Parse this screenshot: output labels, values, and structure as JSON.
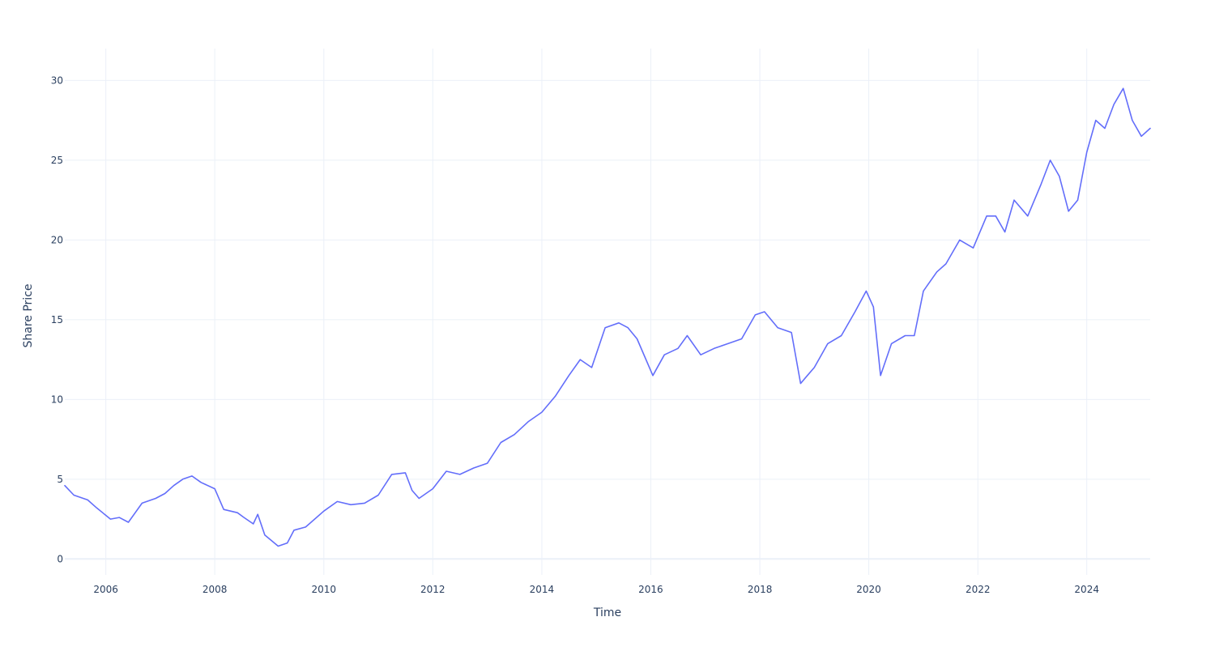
{
  "chart_data": {
    "type": "line",
    "title": "",
    "xlabel": "Time",
    "ylabel": "Share Price",
    "xlim": [
      "2005-04-01",
      "2025-03-01"
    ],
    "ylim": [
      -1,
      32
    ],
    "x_ticks": [
      "2006",
      "2008",
      "2010",
      "2012",
      "2014",
      "2016",
      "2018",
      "2020",
      "2022",
      "2024"
    ],
    "y_ticks": [
      0,
      5,
      10,
      15,
      20,
      25,
      30
    ],
    "grid": true,
    "legend": "none",
    "series": [
      {
        "color": "#636efa",
        "x": [
          "2005-04-01",
          "2005-06-01",
          "2005-09-01",
          "2005-11-01",
          "2006-02-01",
          "2006-04-01",
          "2006-06-01",
          "2006-09-01",
          "2006-12-01",
          "2007-02-01",
          "2007-04-01",
          "2007-06-01",
          "2007-08-01",
          "2007-10-01",
          "2008-01-01",
          "2008-03-01",
          "2008-06-01",
          "2008-07-15",
          "2008-09-15",
          "2008-10-15",
          "2008-12-01",
          "2009-03-01",
          "2009-05-01",
          "2009-06-15",
          "2009-09-01",
          "2010-01-01",
          "2010-04-01",
          "2010-07-01",
          "2010-10-01",
          "2011-01-01",
          "2011-04-01",
          "2011-07-01",
          "2011-08-15",
          "2011-10-01",
          "2012-01-01",
          "2012-04-01",
          "2012-07-01",
          "2012-10-01",
          "2013-01-01",
          "2013-04-01",
          "2013-07-01",
          "2013-10-01",
          "2014-01-01",
          "2014-04-01",
          "2014-07-01",
          "2014-09-15",
          "2014-12-01",
          "2015-03-01",
          "2015-06-01",
          "2015-08-01",
          "2015-10-01",
          "2016-01-15",
          "2016-04-01",
          "2016-07-01",
          "2016-09-01",
          "2016-12-01",
          "2017-03-01",
          "2017-06-01",
          "2017-09-01",
          "2017-12-01",
          "2018-02-01",
          "2018-05-01",
          "2018-08-01",
          "2018-10-01",
          "2018-11-15",
          "2019-01-01",
          "2019-04-01",
          "2019-07-01",
          "2019-10-01",
          "2019-12-15",
          "2020-02-01",
          "2020-03-20",
          "2020-06-01",
          "2020-09-01",
          "2020-11-01",
          "2021-01-01",
          "2021-04-01",
          "2021-06-01",
          "2021-09-01",
          "2021-12-01",
          "2022-03-01",
          "2022-05-01",
          "2022-07-01",
          "2022-09-01",
          "2022-12-01",
          "2023-03-01",
          "2023-05-01",
          "2023-07-01",
          "2023-09-01",
          "2023-11-01",
          "2024-01-01",
          "2024-03-01",
          "2024-05-01",
          "2024-07-01",
          "2024-09-01",
          "2024-11-01",
          "2025-01-01",
          "2025-03-01"
        ],
        "y": [
          4.6,
          4.0,
          3.7,
          3.2,
          2.5,
          2.6,
          2.3,
          3.5,
          3.8,
          4.1,
          4.6,
          5.0,
          5.2,
          4.8,
          4.4,
          3.1,
          2.9,
          2.6,
          2.2,
          2.8,
          1.5,
          0.8,
          1.0,
          1.8,
          2.0,
          3.0,
          3.6,
          3.4,
          3.5,
          4.0,
          5.3,
          5.4,
          4.3,
          3.8,
          4.4,
          5.5,
          5.3,
          5.7,
          6.0,
          7.3,
          7.8,
          8.6,
          9.2,
          10.2,
          11.5,
          12.5,
          12.0,
          14.5,
          14.8,
          14.5,
          13.8,
          11.5,
          12.8,
          13.2,
          14.0,
          12.8,
          13.2,
          13.5,
          13.8,
          15.3,
          15.5,
          14.5,
          14.2,
          11.0,
          11.5,
          12.0,
          13.5,
          14.0,
          15.5,
          16.8,
          15.8,
          11.5,
          13.5,
          14.0,
          14.0,
          16.8,
          18.0,
          18.5,
          20.0,
          19.5,
          21.5,
          21.5,
          20.5,
          22.5,
          21.5,
          23.5,
          25.0,
          24.0,
          21.8,
          22.5,
          25.5,
          27.5,
          27.0,
          28.5,
          29.5,
          27.5,
          26.5,
          27.0
        ]
      }
    ]
  }
}
